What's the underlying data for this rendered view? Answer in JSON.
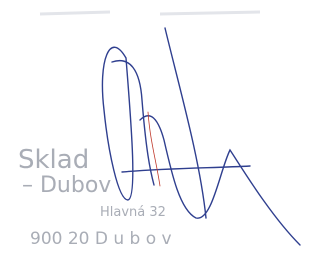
{
  "stamp": {
    "lines": [
      "Sklad",
      "– Dubov",
      "Hlavná 32",
      "900 20  D u b o v"
    ]
  }
}
